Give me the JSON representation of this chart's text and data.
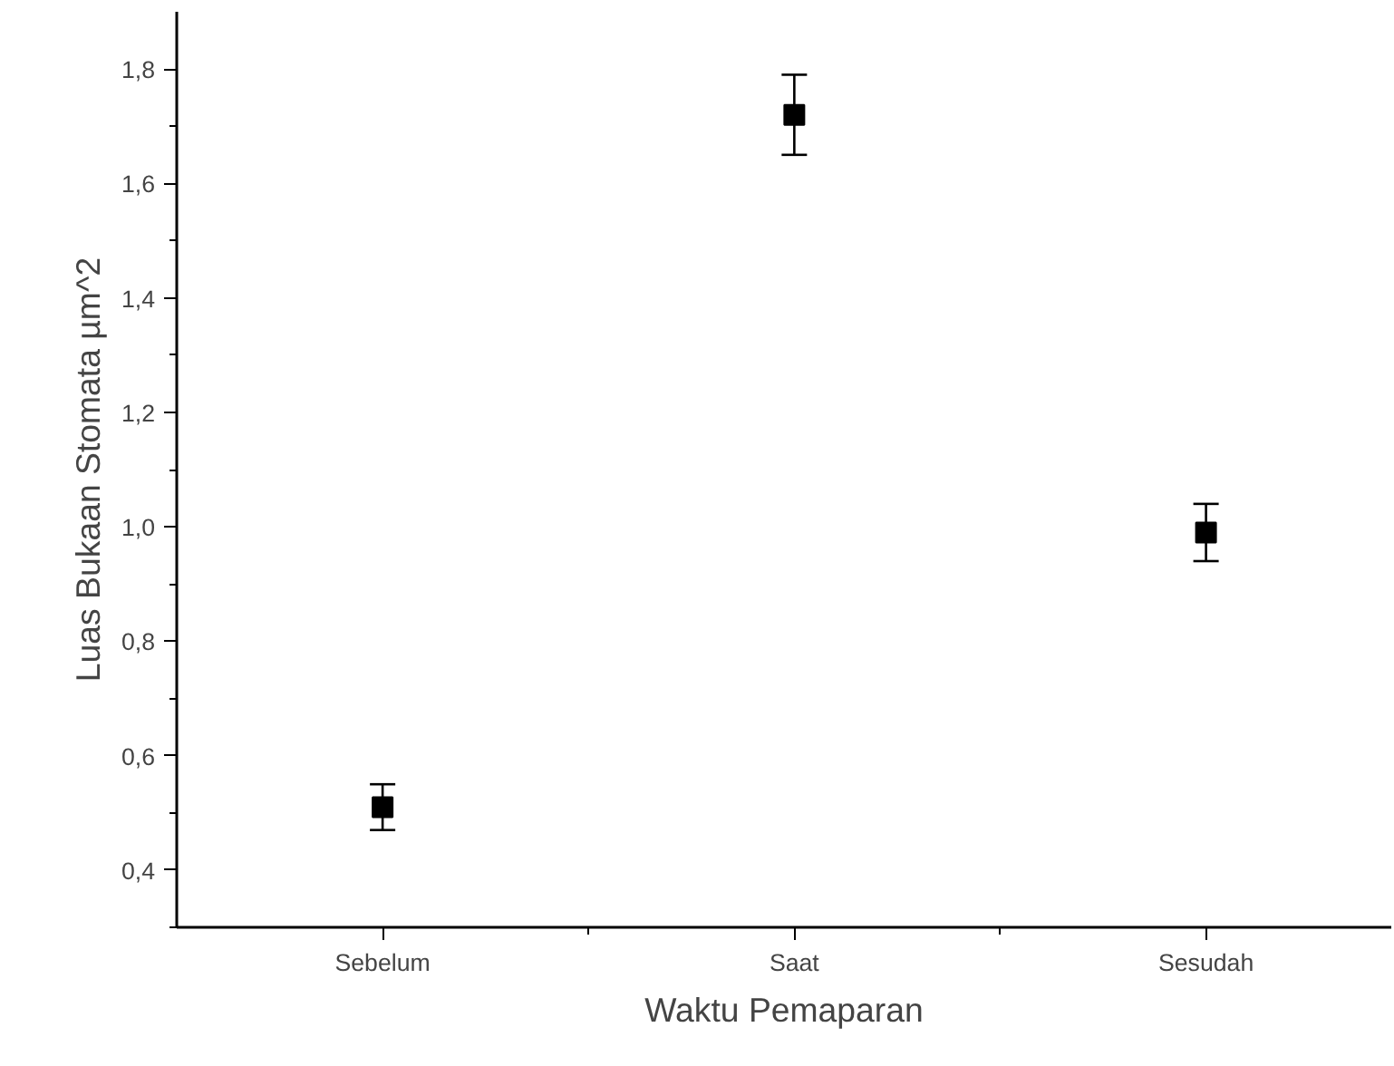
{
  "chart_data": {
    "type": "scatter",
    "xlabel": "Waktu Pemaparan",
    "ylabel": "Luas Bukaan Stomata µm^2",
    "categories": [
      "Sebelum",
      "Saat",
      "Sesudah"
    ],
    "series": [
      {
        "color": "#000000",
        "values": [
          0.51,
          1.72,
          0.99
        ],
        "errors": [
          0.04,
          0.07,
          0.05
        ]
      }
    ],
    "marker": "square",
    "grid": false,
    "ylim": [
      0.3,
      1.9
    ],
    "yticks": [
      {
        "value": 0.4,
        "label": "0,4"
      },
      {
        "value": 0.6,
        "label": "0,6"
      },
      {
        "value": 0.8,
        "label": "0,8"
      },
      {
        "value": 1.0,
        "label": "1,0"
      },
      {
        "value": 1.2,
        "label": "1,2"
      },
      {
        "value": 1.4,
        "label": "1,4"
      },
      {
        "value": 1.6,
        "label": "1,6"
      },
      {
        "value": 1.8,
        "label": "1,8"
      }
    ]
  }
}
